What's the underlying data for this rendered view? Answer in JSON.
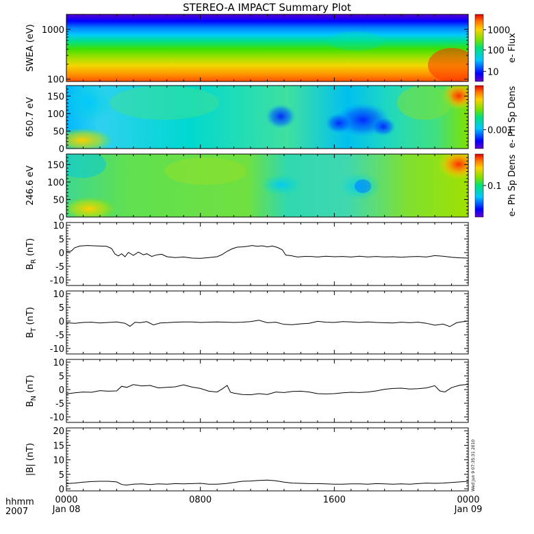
{
  "chart_data": {
    "title": "STEREO-A IMPACT Summary Plot",
    "type": "line",
    "x_tick_labels": [
      {
        "time": "0000",
        "date": "Jan 08"
      },
      {
        "time": "0800",
        "date": ""
      },
      {
        "time": "1600",
        "date": ""
      },
      {
        "time": "0000",
        "date": "Jan 09"
      }
    ],
    "x_axis_caption": {
      "line1": "hhmm",
      "line2": "2007"
    },
    "x_range_hours": [
      0,
      24
    ],
    "timestamp": "Wed Jun 9 07:35:31 2010",
    "spectrograms": [
      {
        "ylabel": "SWEA (eV)",
        "log_y": true,
        "ylim": [
          90,
          2000
        ],
        "y_ticks": [
          {
            "v": 100,
            "label": "100"
          },
          {
            "v": 1000,
            "label": "1000"
          }
        ],
        "colorbar_label": "e- Flux",
        "colorbar_ticks": [
          {
            "label": "1000",
            "f": 0.23
          },
          {
            "label": "100",
            "f": 0.53
          },
          {
            "label": "10",
            "f": 0.85
          }
        ]
      },
      {
        "ylabel": "650.7 eV",
        "log_y": false,
        "ylim": [
          0,
          180
        ],
        "y_ticks": [
          {
            "v": 0,
            "label": "0"
          },
          {
            "v": 50,
            "label": "50"
          },
          {
            "v": 100,
            "label": "100"
          },
          {
            "v": 150,
            "label": "150"
          }
        ],
        "colorbar_label": "e- Ph Sp Dens",
        "colorbar_ticks": [
          {
            "label": "0.001",
            "f": 0.7
          }
        ]
      },
      {
        "ylabel": "246.6 eV",
        "log_y": false,
        "ylim": [
          0,
          180
        ],
        "y_ticks": [
          {
            "v": 0,
            "label": "0"
          },
          {
            "v": 50,
            "label": "50"
          },
          {
            "v": 100,
            "label": "100"
          },
          {
            "v": 150,
            "label": "150"
          }
        ],
        "colorbar_label": "e- Ph Sp Dens",
        "colorbar_ticks": [
          {
            "label": "0.1",
            "f": 0.5
          }
        ]
      }
    ],
    "line_panels": [
      {
        "ylabel_main": "B",
        "ylabel_sub": "R",
        "ylabel_unit": " (nT)",
        "ylim": [
          -12,
          11
        ],
        "y_ticks": [
          {
            "v": -10,
            "label": "-10"
          },
          {
            "v": -5,
            "label": "-5"
          },
          {
            "v": 0,
            "label": "0"
          },
          {
            "v": 5,
            "label": "5"
          },
          {
            "v": 10,
            "label": "10"
          }
        ],
        "series": {
          "x": [
            0,
            0.3,
            0.5,
            0.8,
            1.0,
            1.3,
            1.6,
            2.0,
            2.4,
            2.7,
            2.9,
            3.1,
            3.3,
            3.5,
            3.7,
            4.0,
            4.3,
            4.6,
            4.8,
            5.1,
            5.4,
            5.7,
            6.0,
            6.5,
            7.0,
            7.5,
            8.0,
            8.5,
            9.0,
            9.3,
            9.6,
            9.9,
            10.2,
            10.5,
            10.8,
            11.1,
            11.4,
            11.7,
            12.0,
            12.3,
            12.6,
            12.9,
            13.1,
            13.4,
            13.8,
            14.2,
            14.6,
            15.0,
            15.5,
            16.0,
            16.5,
            17.0,
            17.5,
            18.0,
            18.5,
            19.0,
            19.5,
            20.0,
            20.5,
            21.0,
            21.5,
            22.0,
            22.5,
            23.0,
            23.5,
            24.0
          ],
          "y": [
            0.3,
            0.6,
            1.8,
            2.4,
            2.5,
            2.6,
            2.5,
            2.4,
            2.3,
            1.5,
            -0.5,
            -1.2,
            -0.4,
            -1.5,
            0.1,
            -1.0,
            0.2,
            -0.8,
            -0.4,
            -1.4,
            -0.8,
            -0.6,
            -1.5,
            -1.8,
            -1.6,
            -2.0,
            -2.1,
            -1.8,
            -1.5,
            -0.7,
            0.5,
            1.4,
            2.0,
            2.1,
            2.3,
            2.6,
            2.3,
            2.5,
            2.1,
            2.4,
            1.9,
            1.0,
            -0.9,
            -1.1,
            -1.6,
            -1.4,
            -1.4,
            -1.6,
            -1.3,
            -1.5,
            -1.4,
            -1.6,
            -1.3,
            -1.6,
            -1.4,
            -1.6,
            -1.5,
            -1.7,
            -1.5,
            -1.4,
            -1.6,
            -1.1,
            -1.3,
            -1.7,
            -1.9,
            -2.0
          ]
        }
      },
      {
        "ylabel_main": "B",
        "ylabel_sub": "T",
        "ylabel_unit": " (nT)",
        "ylim": [
          -12,
          11
        ],
        "y_ticks": [
          {
            "v": -10,
            "label": "-10"
          },
          {
            "v": -5,
            "label": "-5"
          },
          {
            "v": 0,
            "label": "0"
          },
          {
            "v": 5,
            "label": "5"
          },
          {
            "v": 10,
            "label": "10"
          }
        ],
        "series": {
          "x": [
            0,
            0.5,
            1.0,
            1.5,
            2.0,
            2.5,
            3.0,
            3.5,
            3.8,
            4.1,
            4.4,
            4.8,
            5.2,
            5.6,
            6.0,
            6.5,
            7.0,
            7.5,
            8.0,
            8.5,
            9.0,
            9.5,
            10.0,
            10.5,
            11.0,
            11.5,
            12.0,
            12.5,
            13.0,
            13.5,
            14.0,
            14.5,
            15.0,
            15.5,
            16.0,
            16.5,
            17.0,
            17.5,
            18.0,
            18.5,
            19.0,
            19.5,
            20.0,
            20.5,
            21.0,
            21.5,
            22.0,
            22.5,
            22.9,
            23.3,
            23.7,
            24.0
          ],
          "y": [
            -0.6,
            -0.8,
            -0.5,
            -0.4,
            -0.7,
            -0.5,
            -0.3,
            -0.8,
            -1.9,
            -0.4,
            -0.6,
            -0.2,
            -1.4,
            -0.7,
            -0.6,
            -0.4,
            -0.3,
            -0.3,
            -0.5,
            -0.4,
            -0.3,
            -0.4,
            -0.5,
            -0.4,
            -0.2,
            0.3,
            -0.6,
            -0.4,
            -1.2,
            -1.3,
            -1.0,
            -0.8,
            -0.1,
            -0.4,
            -0.5,
            -0.2,
            -0.3,
            -0.5,
            -0.3,
            -0.5,
            -0.6,
            -0.7,
            -0.4,
            -0.6,
            -0.4,
            -0.8,
            -1.5,
            -1.1,
            -2.0,
            -0.6,
            -0.2,
            0.0
          ]
        }
      },
      {
        "ylabel_main": "B",
        "ylabel_sub": "N",
        "ylabel_unit": " (nT)",
        "ylim": [
          -12,
          11
        ],
        "y_ticks": [
          {
            "v": -10,
            "label": "-10"
          },
          {
            "v": -5,
            "label": "-5"
          },
          {
            "v": 0,
            "label": "0"
          },
          {
            "v": 5,
            "label": "5"
          },
          {
            "v": 10,
            "label": "10"
          }
        ],
        "series": {
          "x": [
            0,
            0.5,
            1.0,
            1.5,
            2.0,
            2.5,
            3.0,
            3.3,
            3.6,
            4.0,
            4.5,
            5.0,
            5.5,
            6.0,
            6.5,
            7.0,
            7.5,
            8.0,
            8.5,
            9.0,
            9.3,
            9.6,
            9.8,
            10.0,
            10.5,
            11.0,
            11.5,
            12.0,
            12.5,
            13.0,
            13.5,
            14.0,
            14.5,
            15.0,
            15.5,
            16.0,
            16.5,
            17.0,
            17.5,
            18.0,
            18.5,
            19.0,
            19.5,
            20.0,
            20.5,
            21.0,
            21.5,
            22.0,
            22.3,
            22.6,
            23.0,
            23.5,
            24.0
          ],
          "y": [
            -1.6,
            -1.2,
            -0.9,
            -1.0,
            -0.4,
            -0.6,
            -0.5,
            1.2,
            0.8,
            1.8,
            1.3,
            1.5,
            0.6,
            0.8,
            1.0,
            1.7,
            0.9,
            0.4,
            -0.6,
            -0.9,
            0.2,
            1.5,
            -1.0,
            -1.3,
            -1.8,
            -1.9,
            -1.5,
            -1.8,
            -0.9,
            -1.1,
            -0.7,
            -0.6,
            -0.9,
            -1.5,
            -1.6,
            -1.5,
            -1.2,
            -1.0,
            -1.1,
            -0.9,
            -0.5,
            0.1,
            0.4,
            0.5,
            0.2,
            0.3,
            0.6,
            1.4,
            -0.5,
            -0.9,
            0.7,
            1.6,
            1.9
          ]
        }
      },
      {
        "ylabel_main": "|B|",
        "ylabel_sub": "",
        "ylabel_unit": " (nT)",
        "ylim": [
          -0.7,
          21
        ],
        "y_ticks": [
          {
            "v": 0,
            "label": "0"
          },
          {
            "v": 5,
            "label": "5"
          },
          {
            "v": 10,
            "label": "10"
          },
          {
            "v": 15,
            "label": "15"
          },
          {
            "v": 20,
            "label": "20"
          }
        ],
        "series": {
          "x": [
            0,
            0.5,
            1.0,
            1.5,
            2.0,
            2.5,
            3.0,
            3.3,
            3.6,
            4.0,
            4.5,
            5.0,
            5.5,
            6.0,
            6.5,
            7.0,
            7.5,
            8.0,
            8.5,
            9.0,
            9.5,
            10.0,
            10.5,
            11.0,
            11.5,
            12.0,
            12.5,
            13.0,
            13.5,
            14.0,
            14.5,
            15.0,
            15.5,
            16.0,
            16.5,
            17.0,
            17.5,
            18.0,
            18.5,
            19.0,
            19.5,
            20.0,
            20.5,
            21.0,
            21.5,
            22.0,
            22.5,
            23.0,
            23.5,
            24.0
          ],
          "y": [
            1.8,
            2.0,
            2.3,
            2.5,
            2.6,
            2.6,
            2.4,
            1.5,
            1.3,
            1.6,
            1.7,
            1.5,
            1.7,
            1.6,
            1.8,
            1.7,
            1.8,
            1.9,
            1.6,
            1.6,
            1.8,
            2.2,
            2.6,
            2.7,
            2.9,
            3.0,
            2.8,
            2.3,
            2.0,
            1.9,
            1.8,
            1.8,
            1.7,
            1.6,
            1.6,
            1.7,
            1.7,
            1.6,
            1.8,
            1.7,
            1.6,
            1.7,
            1.6,
            1.8,
            2.0,
            1.9,
            2.0,
            2.2,
            2.4,
            2.6
          ]
        }
      }
    ]
  }
}
